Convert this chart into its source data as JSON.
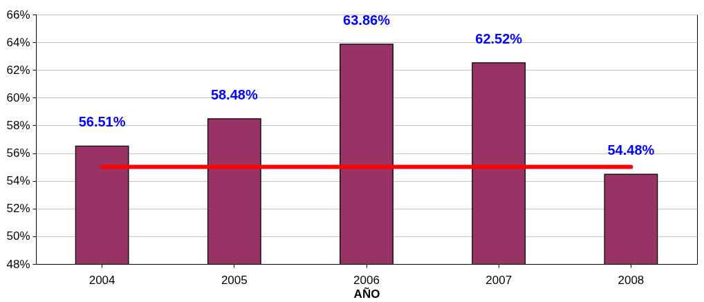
{
  "chart_data": {
    "type": "bar",
    "xlabel": "AÑO",
    "categories": [
      "2004",
      "2005",
      "2006",
      "2007",
      "2008"
    ],
    "series": [
      {
        "color": "#993366",
        "values": [
          56.51,
          58.48,
          63.86,
          62.52,
          54.48
        ],
        "value_labels": [
          "56.51%",
          "58.48%",
          "63.86%",
          "62.52%",
          "54.48%"
        ]
      },
      {
        "type": "line",
        "color": "#ff0000",
        "values": [
          55,
          55,
          55,
          55,
          55
        ]
      }
    ],
    "ylim": [
      48,
      66
    ],
    "yticks": [
      {
        "value": 48,
        "label": "48%"
      },
      {
        "value": 50,
        "label": "50%"
      },
      {
        "value": 52,
        "label": "52%"
      },
      {
        "value": 54,
        "label": "54%"
      },
      {
        "value": 56,
        "label": "56%"
      },
      {
        "value": 58,
        "label": "58%"
      },
      {
        "value": 60,
        "label": "60%"
      },
      {
        "value": 62,
        "label": "62%"
      },
      {
        "value": 64,
        "label": "64%"
      },
      {
        "value": 66,
        "label": "66%"
      }
    ],
    "grid": "y"
  }
}
